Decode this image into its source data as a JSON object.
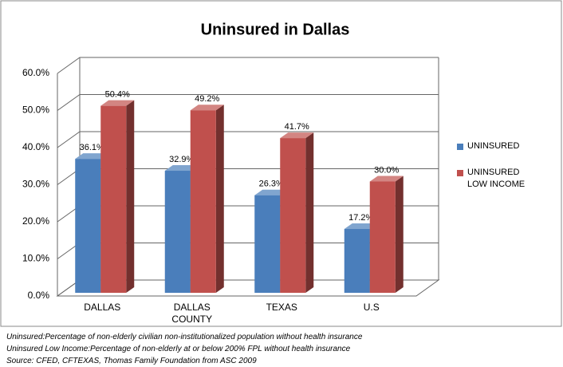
{
  "chart_data": {
    "type": "bar3d",
    "title": "Uninsured in Dallas",
    "categories": [
      "DALLAS",
      "DALLAS COUNTY",
      "TEXAS",
      "U.S"
    ],
    "series": [
      {
        "name": "UNINSURED",
        "color": "#4a7ebb",
        "values": [
          36.1,
          32.9,
          26.3,
          17.2
        ],
        "value_labels": [
          "36.1%",
          "32.9%",
          "26.3%",
          "17.2%"
        ]
      },
      {
        "name": "UNINSURED LOW INCOME",
        "color": "#c0504d",
        "values": [
          50.4,
          49.2,
          41.7,
          30.0
        ],
        "value_labels": [
          "50.4%",
          "49.2%",
          "41.7%",
          "30.0%"
        ]
      }
    ],
    "ylim": [
      0,
      60
    ],
    "yticks": [
      {
        "value": 0,
        "label": "0.0%"
      },
      {
        "value": 10,
        "label": "10.0%"
      },
      {
        "value": 20,
        "label": "20.0%"
      },
      {
        "value": 30,
        "label": "30.0%"
      },
      {
        "value": 40,
        "label": "40.0%"
      },
      {
        "value": 50,
        "label": "50.0%"
      },
      {
        "value": 60,
        "label": "60.0%"
      }
    ],
    "grid": true,
    "legend": "right",
    "notes": [
      "Uninsured:Percentage of non-elderly civilian non-institutionalized population without health insurance",
      "Uninsured Low Income:Percentage of non-elderly at or below 200% FPL without health insurance",
      "Source: CFED, CFTEXAS, Thomas Family Foundation from ASC 2009"
    ]
  }
}
